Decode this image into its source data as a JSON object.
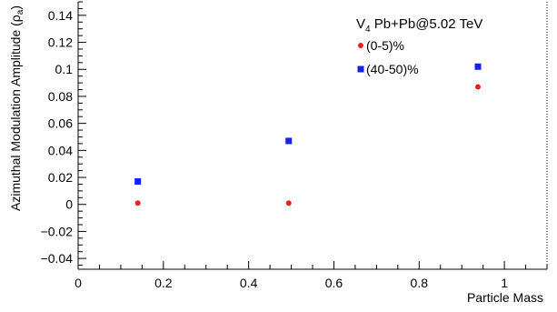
{
  "chart_data": {
    "type": "scatter",
    "legend": {
      "title_main": "V",
      "title_sub": "4",
      "title_rest": " Pb+Pb@5.02 TeV",
      "placement": "top-right"
    },
    "xlabel": "Particle Mass",
    "ylabel_main": "Azimuthal Modulation Amplitude (ρ",
    "ylabel_sub": "a",
    "ylabel_close": ")",
    "xlim": [
      0,
      1.1
    ],
    "ylim": [
      -0.048,
      0.15
    ],
    "xticks": [
      {
        "value": 0,
        "label": "0"
      },
      {
        "value": 0.2,
        "label": "0.2"
      },
      {
        "value": 0.4,
        "label": "0.4"
      },
      {
        "value": 0.6,
        "label": "0.6"
      },
      {
        "value": 0.8,
        "label": "0.8"
      },
      {
        "value": 1.0,
        "label": "1"
      }
    ],
    "yticks": [
      {
        "value": -0.04,
        "label": "−0.04"
      },
      {
        "value": -0.02,
        "label": "−0.02"
      },
      {
        "value": 0,
        "label": "0"
      },
      {
        "value": 0.02,
        "label": "0.02"
      },
      {
        "value": 0.04,
        "label": "0.04"
      },
      {
        "value": 0.06,
        "label": "0.06"
      },
      {
        "value": 0.08,
        "label": "0.08"
      },
      {
        "value": 0.1,
        "label": "0.1"
      },
      {
        "value": 0.12,
        "label": "0.12"
      },
      {
        "value": 0.14,
        "label": "0.14"
      }
    ],
    "series": [
      {
        "name": "(0-5)%",
        "marker": "circle",
        "color": "#e8211f",
        "x": [
          0.14,
          0.494,
          0.938
        ],
        "y": [
          0.001,
          0.001,
          0.087
        ]
      },
      {
        "name": "(40-50)%",
        "marker": "square",
        "color": "#1424e0",
        "x": [
          0.14,
          0.494,
          0.938
        ],
        "y": [
          0.017,
          0.047,
          0.102
        ]
      }
    ]
  }
}
